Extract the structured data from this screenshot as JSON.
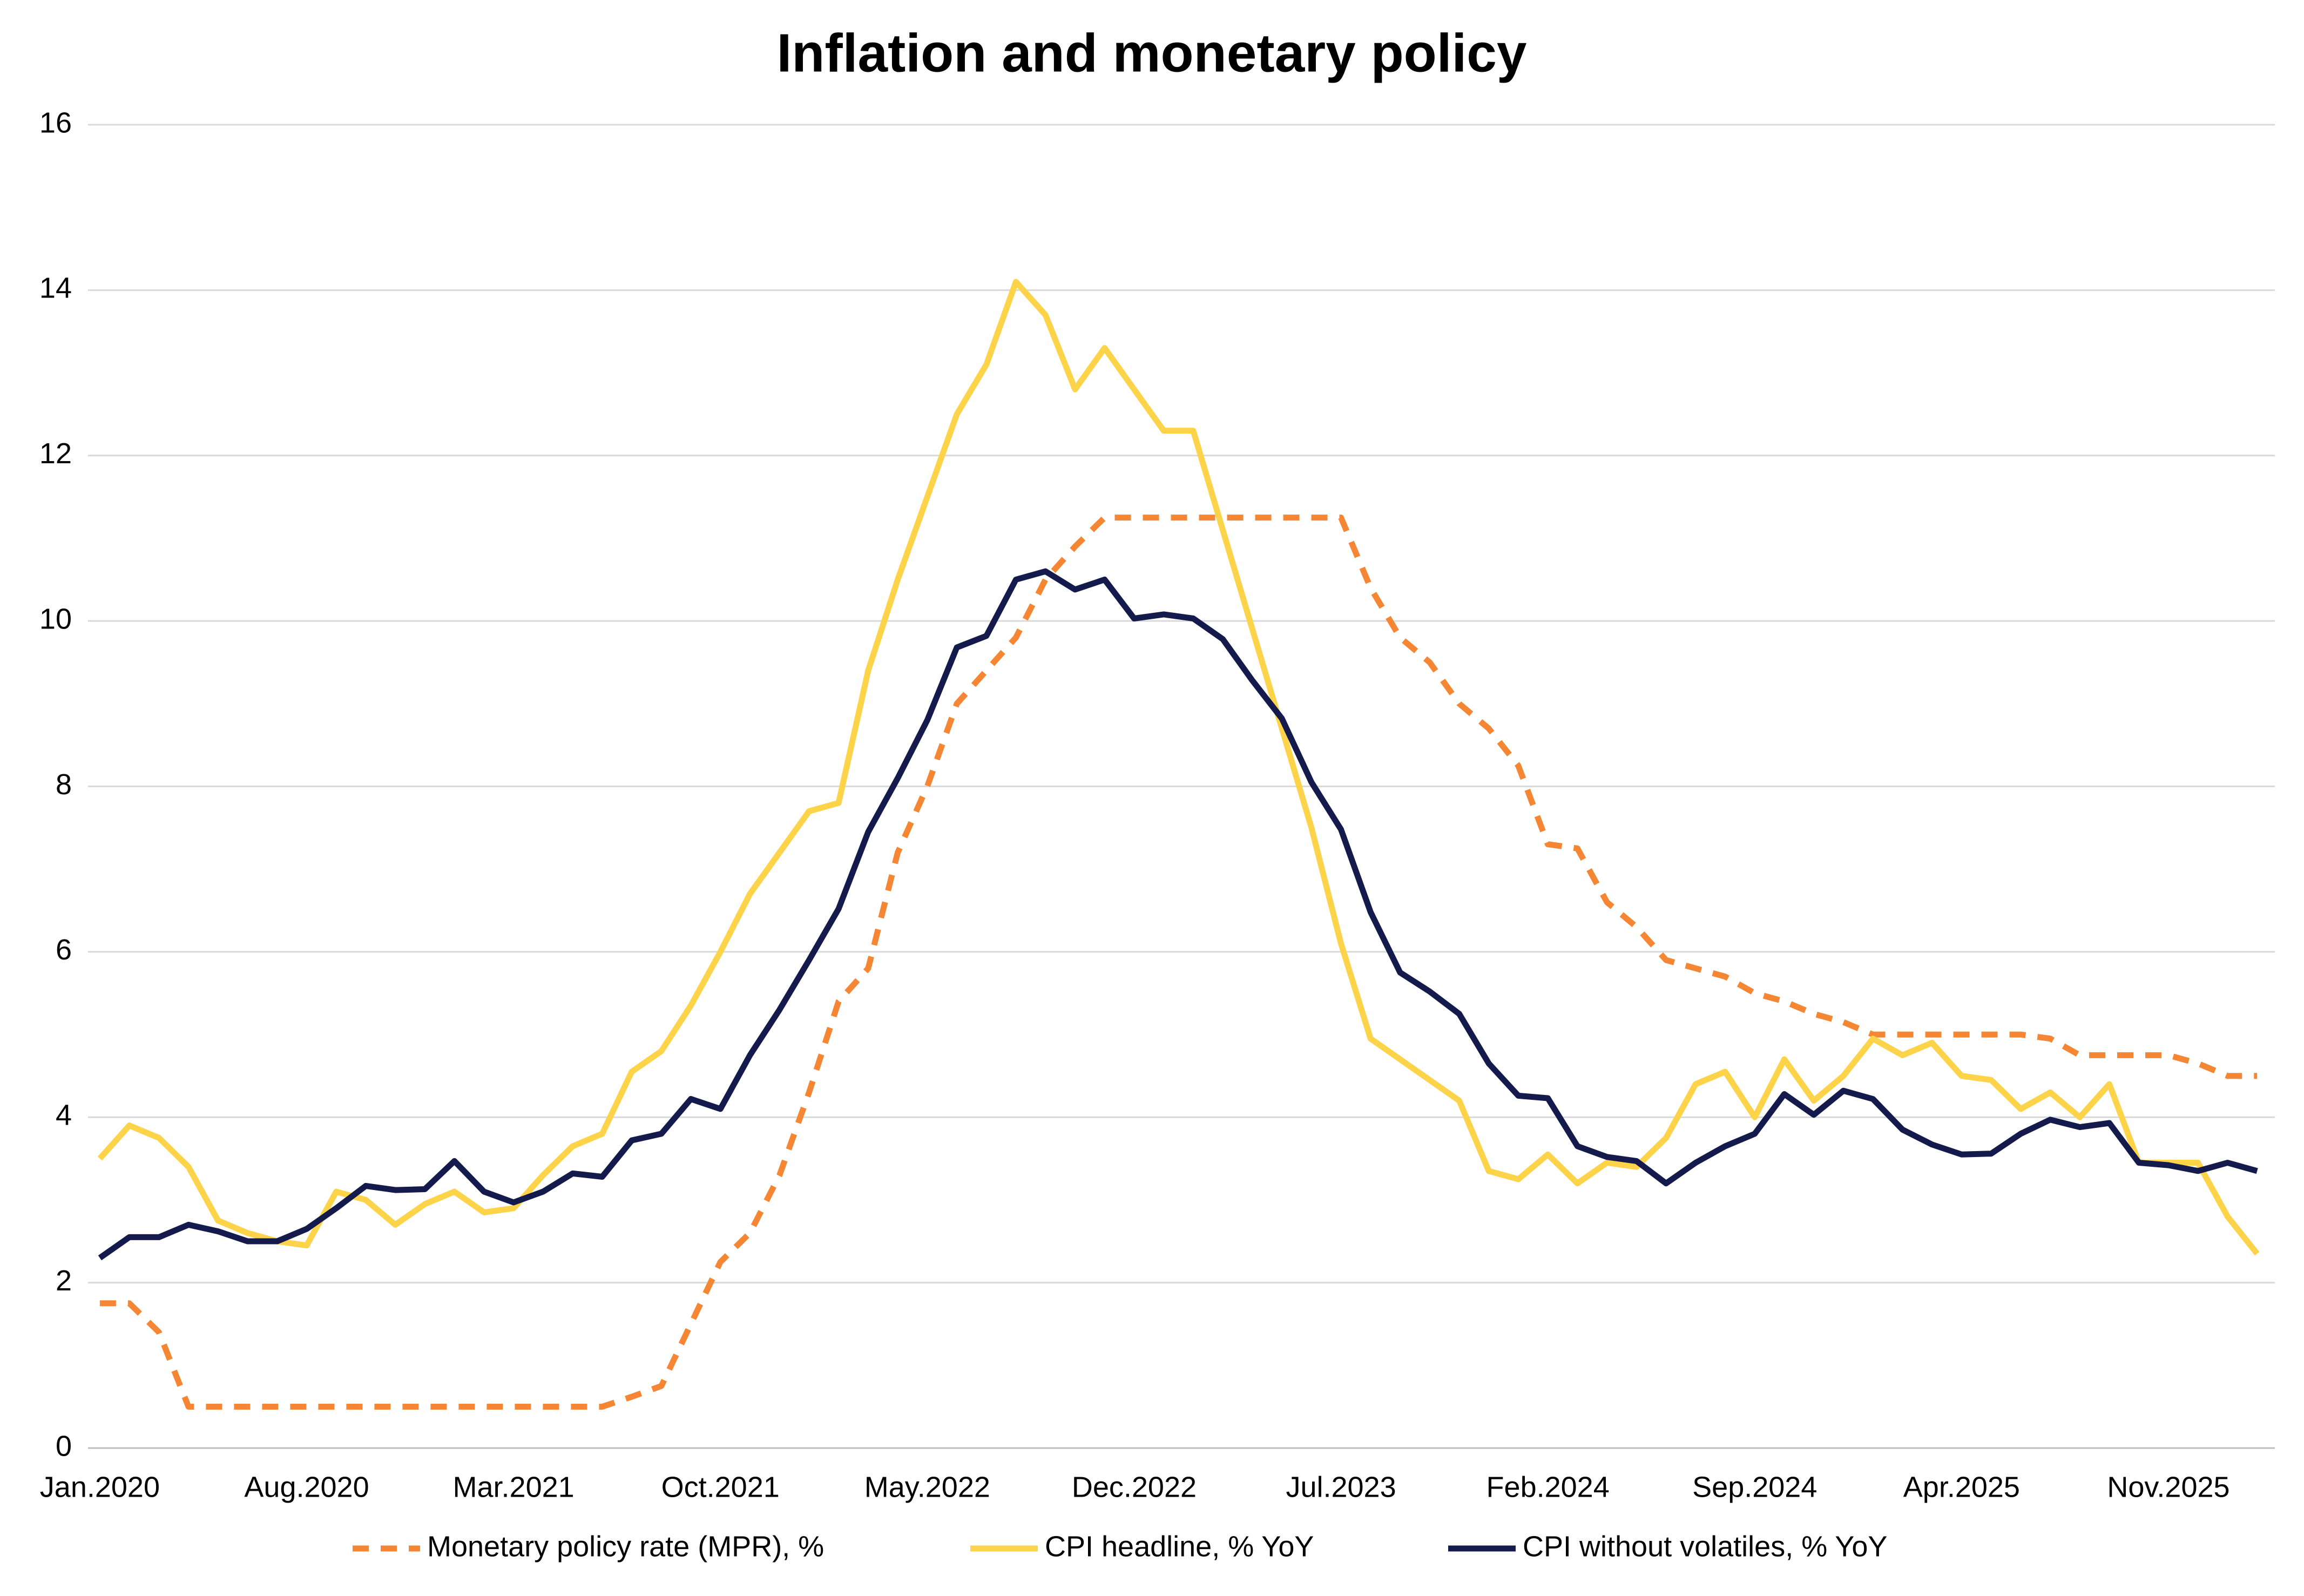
{
  "chart_data": {
    "type": "line",
    "title": "Inflation and monetary policy",
    "categories": [
      "Jan.2020",
      null,
      null,
      null,
      null,
      null,
      null,
      "Aug.2020",
      null,
      null,
      null,
      null,
      null,
      null,
      "Mar.2021",
      null,
      null,
      null,
      null,
      null,
      null,
      "Oct.2021",
      null,
      null,
      null,
      null,
      null,
      null,
      "May.2022",
      null,
      null,
      null,
      null,
      null,
      null,
      "Dec.2022",
      null,
      null,
      null,
      null,
      null,
      null,
      "Jul.2023",
      null,
      null,
      null,
      null,
      null,
      null,
      "Feb.2024",
      null,
      null,
      null,
      null,
      null,
      null,
      "Sep.2024",
      null,
      null,
      null,
      null,
      null,
      null,
      "Apr.2025",
      null,
      null,
      null,
      null,
      null,
      null,
      "Nov.2025",
      null,
      null,
      null
    ],
    "series": [
      {
        "name": "Monetary policy rate (MPR), %",
        "color": "#f58634",
        "dashed": true,
        "values": [
          1.75,
          1.75,
          1.4,
          0.5,
          0.5,
          0.5,
          0.5,
          0.5,
          0.5,
          0.5,
          0.5,
          0.5,
          0.5,
          0.5,
          0.5,
          0.5,
          0.5,
          0.5,
          0.62,
          0.75,
          1.5,
          2.25,
          2.6,
          3.3,
          4.3,
          5.4,
          5.8,
          7.2,
          8.0,
          9.0,
          9.4,
          9.8,
          10.5,
          10.9,
          11.25,
          11.25,
          11.25,
          11.25,
          11.25,
          11.25,
          11.25,
          11.25,
          11.25,
          10.4,
          9.8,
          9.5,
          9.0,
          8.7,
          8.25,
          7.3,
          7.25,
          6.6,
          6.3,
          5.9,
          5.8,
          5.7,
          5.5,
          5.4,
          5.25,
          5.15,
          5.0,
          5.0,
          5.0,
          5.0,
          5.0,
          5.0,
          4.95,
          4.75,
          4.75,
          4.75,
          4.75,
          4.65,
          4.5,
          4.5
        ]
      },
      {
        "name": "CPI headline, % YoY",
        "color": "#fdd34a",
        "dashed": false,
        "values": [
          3.5,
          3.9,
          3.75,
          3.4,
          2.75,
          2.6,
          2.5,
          2.45,
          3.1,
          3.0,
          2.7,
          2.95,
          3.1,
          2.85,
          2.9,
          3.3,
          3.65,
          3.8,
          4.55,
          4.8,
          5.35,
          6.0,
          6.7,
          7.2,
          7.7,
          7.8,
          9.4,
          10.5,
          11.5,
          12.5,
          13.1,
          14.1,
          13.7,
          12.8,
          13.3,
          12.8,
          12.3,
          12.3,
          11.1,
          9.9,
          8.7,
          7.5,
          6.1,
          4.95,
          4.7,
          4.45,
          4.2,
          3.35,
          3.25,
          3.55,
          3.2,
          3.45,
          3.4,
          3.75,
          4.4,
          4.55,
          4.0,
          4.7,
          4.2,
          4.5,
          4.95,
          4.75,
          4.9,
          4.5,
          4.45,
          4.1,
          4.3,
          4.0,
          4.4,
          3.45,
          3.45,
          3.45,
          2.8,
          2.35
        ]
      },
      {
        "name": "CPI without volatiles, % YoY",
        "color": "#141a4c",
        "dashed": false,
        "values": [
          2.3,
          2.55,
          2.55,
          2.7,
          2.62,
          2.5,
          2.5,
          2.65,
          2.9,
          3.17,
          3.12,
          3.13,
          3.47,
          3.1,
          2.97,
          3.1,
          3.32,
          3.28,
          3.72,
          3.8,
          4.22,
          4.1,
          4.75,
          5.3,
          5.9,
          6.52,
          7.45,
          8.1,
          8.8,
          9.68,
          9.82,
          10.5,
          10.6,
          10.38,
          10.5,
          10.03,
          10.08,
          10.03,
          9.78,
          9.28,
          8.82,
          8.05,
          7.48,
          6.48,
          5.75,
          5.52,
          5.25,
          4.65,
          4.26,
          4.23,
          3.65,
          3.52,
          3.47,
          3.2,
          3.45,
          3.65,
          3.8,
          4.28,
          4.03,
          4.32,
          4.22,
          3.85,
          3.67,
          3.55,
          3.56,
          3.8,
          3.97,
          3.88,
          3.93,
          3.45,
          3.42,
          3.35,
          3.45,
          3.35
        ]
      }
    ],
    "ylim": [
      0,
      16
    ],
    "yticks": [
      0,
      2,
      4,
      6,
      8,
      10,
      12,
      14,
      16
    ],
    "grid": true,
    "legend": "bottom"
  }
}
